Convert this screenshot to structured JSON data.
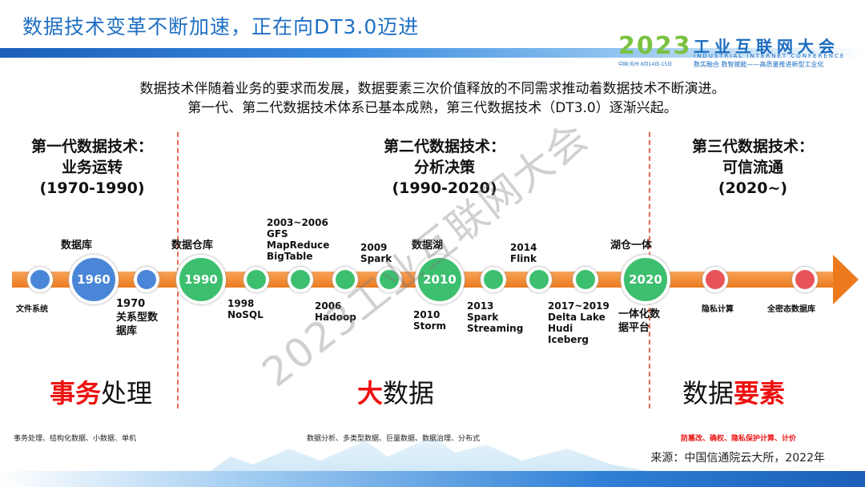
{
  "title": "数据技术变革不断加速，正在向DT3.0迈进",
  "logo": {
    "year": "2023",
    "name": "工业互联网大会",
    "en": "INDUSTRIAL INTERNET CONFERENCE",
    "slogan": "数实融合  数智赋能——高质量推进新型工业化",
    "date": "中国·苏州  8月14日-15日"
  },
  "intro": [
    "数据技术伴随着业务的要求而发展，数据要素三次价值释放的不同需求推动着数据技术不断演进。",
    "第一代、第二代数据技术体系已基本成熟，第三代数据技术（DT3.0）逐渐兴起。"
  ],
  "generations": [
    {
      "name": "第一代数据技术：",
      "theme": "业务运转",
      "period": "(1970-1990)",
      "big_red": "事务",
      "big_black": "处理",
      "note": "事务处理、结构化数据、小数据、单机"
    },
    {
      "name": "第二代数据技术：",
      "theme": "分析决策",
      "period": "(1990-2020)",
      "big_red": "大",
      "big_black": "数据",
      "note": "数据分析、多类型数据、巨量数据、数据治理、分布式"
    },
    {
      "name": "第三代数据技术：",
      "theme": "可信流通",
      "period": "(2020~)",
      "big_black": "数据",
      "big_red": "要素",
      "note": "防篡改、确权、隐私保护计算、计价"
    }
  ],
  "colors": {
    "blue": "#4a86d8",
    "green": "#3cbf6e",
    "red": "#e8535a",
    "orange": "#ec7a1d"
  },
  "milestones": {
    "wjxt": "文件系统",
    "sjk": "数据库",
    "y1960": "1960",
    "gxx": "1970\n关系型数\n据库",
    "sjck": "数据仓库",
    "y1990": "1990",
    "nosql": "1998\nNoSQL",
    "gfs": "2003~2006\nGFS\nMapReduce\nBigTable",
    "hadoop": "2006\nHadoop",
    "spark": "2009\nSpark",
    "sjh": "数据湖",
    "y2010": "2010",
    "storm": "2010\nStorm",
    "sstream": "2013\nSpark\nStreaming",
    "flink": "2014\nFlink",
    "delta": "2017~2019\nDelta Lake\nHudi\nIceberg",
    "hcyt": "湖仓一体",
    "y2020": "2020",
    "ythpt": "一体化数\n据平台",
    "yszj": "隐私计算",
    "qmt": "全密态数据库"
  },
  "watermark": "2023工业互联网大会",
  "source": "来源：中国信通院云大所，2022年"
}
